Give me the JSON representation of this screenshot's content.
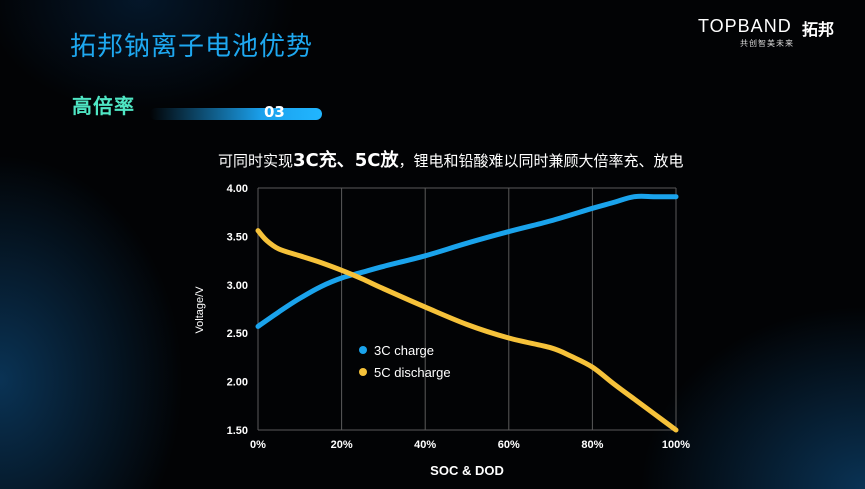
{
  "slide": {
    "title": "拓邦钠离子电池优势",
    "logo": {
      "en": "TOPBAND",
      "cn": "拓邦",
      "tagline": "共创智美未来"
    },
    "section": {
      "label": "高倍率",
      "number": "03"
    },
    "subtitle": {
      "prefix": "可同时实现",
      "bold": "3C充、5C放",
      "suffix": "，锂电和铅酸难以同时兼顾大倍率充、放电"
    }
  },
  "colors": {
    "title": "#1ea8f0",
    "charge": "#1aa3ec",
    "discharge": "#f6c23a"
  },
  "chart_data": {
    "type": "line",
    "xlabel": "SOC & DOD",
    "ylabel": "Voltage/V",
    "xlim": [
      0,
      100
    ],
    "ylim": [
      1.5,
      4.0
    ],
    "x_ticks": [
      0,
      20,
      40,
      60,
      80,
      100
    ],
    "x_tick_labels": [
      "0%",
      "20%",
      "40%",
      "60%",
      "80%",
      "100%"
    ],
    "y_ticks": [
      1.5,
      2.0,
      2.5,
      3.0,
      3.5,
      4.0
    ],
    "y_tick_labels": [
      "1.50",
      "2.00",
      "2.50",
      "3.00",
      "3.50",
      "4.00"
    ],
    "grid": "vertical",
    "legend_position": "center-left",
    "series": [
      {
        "name": "3C charge",
        "color": "#1aa3ec",
        "x": [
          0,
          5,
          10,
          15,
          20,
          25,
          30,
          40,
          50,
          60,
          70,
          80,
          85,
          90,
          95,
          100
        ],
        "y": [
          2.57,
          2.72,
          2.86,
          2.98,
          3.07,
          3.13,
          3.19,
          3.3,
          3.43,
          3.55,
          3.66,
          3.79,
          3.85,
          3.91,
          3.91,
          3.91
        ]
      },
      {
        "name": "5C discharge",
        "color": "#f6c23a",
        "x": [
          0,
          2,
          5,
          10,
          15,
          20,
          25,
          30,
          40,
          50,
          60,
          70,
          75,
          80,
          85,
          90,
          95,
          100
        ],
        "y": [
          3.56,
          3.46,
          3.37,
          3.3,
          3.23,
          3.15,
          3.06,
          2.96,
          2.77,
          2.59,
          2.45,
          2.35,
          2.26,
          2.15,
          1.98,
          1.82,
          1.66,
          1.5
        ]
      }
    ]
  }
}
